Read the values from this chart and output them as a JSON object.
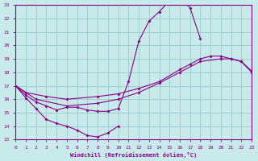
{
  "xlabel": "Windchill (Refroidissement éolien,°C)",
  "bg_color": "#c8eaea",
  "grid_color": "#98cccc",
  "line_color": "#880088",
  "xmin": 0,
  "xmax": 23,
  "ymin": 13,
  "ymax": 23,
  "line1_x": [
    0,
    1,
    2,
    3,
    4,
    5,
    6,
    7,
    8,
    9,
    10,
    11,
    12,
    13,
    14,
    15,
    16,
    17,
    18
  ],
  "line1_y": [
    17.0,
    16.3,
    15.8,
    15.5,
    15.2,
    15.4,
    15.4,
    15.2,
    15.1,
    15.1,
    15.3,
    17.3,
    20.3,
    21.8,
    22.5,
    23.3,
    23.5,
    22.8,
    20.5
  ],
  "line2_x": [
    0,
    1,
    3,
    5,
    8,
    10,
    12,
    14,
    16,
    17,
    18,
    19,
    20,
    21,
    22,
    23
  ],
  "line2_y": [
    17.0,
    16.5,
    16.2,
    16.0,
    16.2,
    16.4,
    16.8,
    17.3,
    18.2,
    18.6,
    19.0,
    19.2,
    19.2,
    19.0,
    18.8,
    18.1
  ],
  "line3_x": [
    0,
    2,
    5,
    8,
    10,
    12,
    14,
    16,
    18,
    20,
    21,
    22,
    23
  ],
  "line3_y": [
    17.0,
    16.0,
    15.5,
    15.7,
    16.0,
    16.5,
    17.2,
    18.0,
    18.8,
    19.0,
    19.0,
    18.8,
    18.0
  ],
  "line4_x": [
    0,
    1,
    2,
    3,
    4,
    5,
    6,
    7,
    8,
    9,
    10
  ],
  "line4_y": [
    17.0,
    16.1,
    15.3,
    14.5,
    14.2,
    14.0,
    13.7,
    13.3,
    13.2,
    13.5,
    14.0
  ],
  "xticks": [
    0,
    1,
    2,
    3,
    4,
    5,
    6,
    7,
    8,
    9,
    10,
    11,
    12,
    13,
    14,
    15,
    16,
    17,
    18,
    19,
    20,
    21,
    22,
    23
  ],
  "yticks": [
    13,
    14,
    15,
    16,
    17,
    18,
    19,
    20,
    21,
    22,
    23
  ]
}
